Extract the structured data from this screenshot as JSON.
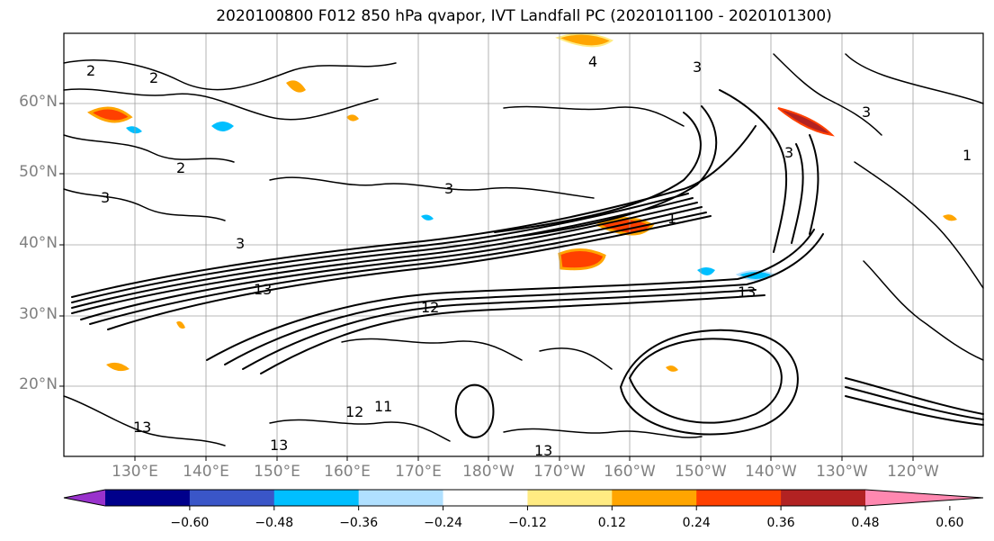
{
  "title": "2020100800 F012 850 hPa qvapor, IVT Landfall PC (2020101100 - 2020101300)",
  "lat_labels": [
    "60°N",
    "50°N",
    "40°N",
    "30°N",
    "20°N"
  ],
  "lon_labels": [
    "130°E",
    "140°E",
    "150°E",
    "160°E",
    "170°E",
    "180°W",
    "170°W",
    "160°W",
    "150°W",
    "140°W",
    "130°W",
    "120°W"
  ],
  "contour_labels": [
    "2",
    "2",
    "2",
    "4",
    "3",
    "3",
    "3",
    "3",
    "3",
    "1",
    "3",
    "13",
    "12",
    "13",
    "13",
    "13",
    "13",
    "11",
    "1",
    "12"
  ],
  "colorbar": {
    "colors": [
      "#9932cc",
      "#00008b",
      "#3a56c8",
      "#00bfff",
      "#b0e0ff",
      "#ffffff",
      "#ffeb82",
      "#ffa500",
      "#ff4000",
      "#b22222",
      "#ff88b0"
    ],
    "tick_labels": [
      "−0.60",
      "−0.48",
      "−0.36",
      "−0.24",
      "−0.12",
      "0.12",
      "0.24",
      "0.36",
      "0.48",
      "0.60"
    ]
  },
  "colors": {
    "frame": "#000000",
    "grid": "#a0a0a0",
    "contour": "#000000",
    "axis_label": "#808080"
  }
}
